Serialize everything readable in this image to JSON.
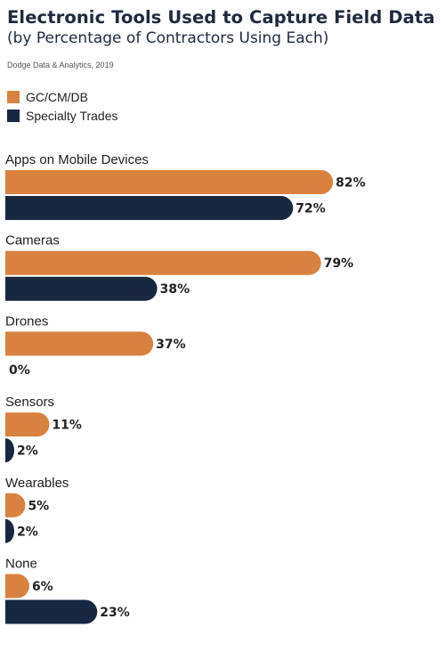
{
  "title": "Electronic Tools Used to Capture Field Data",
  "subtitle": "(by Percentage of Contractors Using Each)",
  "source": "Dodge Data & Analytics, 2019",
  "colors": {
    "orange": "#d9823f",
    "navy": "#182841"
  },
  "chart_data": {
    "type": "bar",
    "orientation": "horizontal",
    "title": "Electronic Tools Used to Capture Field Data",
    "subtitle": "(by Percentage of Contractors Using Each)",
    "categories": [
      "Apps on Mobile Devices",
      "Cameras",
      "Drones",
      "Sensors",
      "Wearables",
      "None"
    ],
    "series": [
      {
        "name": "GC/CM/DB",
        "values": [
          82,
          79,
          37,
          11,
          5,
          6
        ],
        "labels": [
          "82%",
          "79%",
          "37%",
          "11%",
          "5%",
          "6%"
        ],
        "color": "#d9823f"
      },
      {
        "name": "Specialty Trades",
        "values": [
          72,
          38,
          0,
          2,
          2,
          23
        ],
        "labels": [
          "72%",
          "38%",
          "0%",
          "2%",
          "2%",
          "23%"
        ],
        "color": "#182841"
      }
    ],
    "xlim": [
      0,
      100
    ],
    "legend": "top-left",
    "grid": false
  }
}
